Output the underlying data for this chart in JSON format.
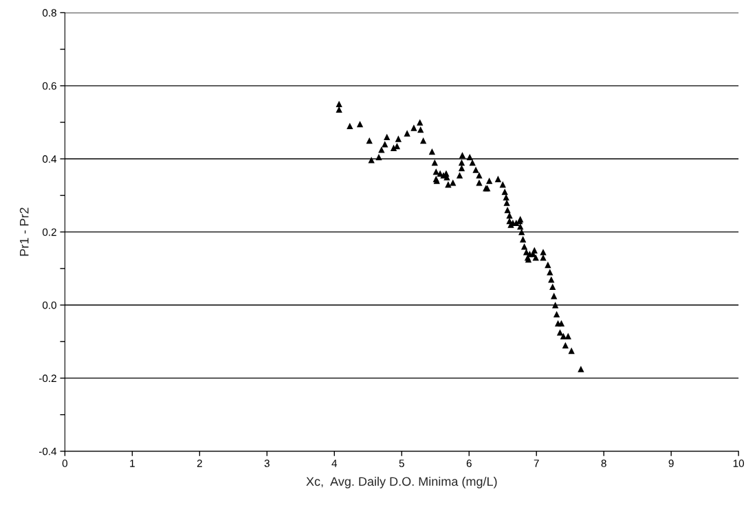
{
  "chart_data": {
    "type": "scatter",
    "xlabel": "Xc,  Avg. Daily D.O. Minima (mg/L)",
    "ylabel": "Pr1 - Pr2",
    "xlim": [
      0,
      10
    ],
    "xticks": [
      0,
      1,
      2,
      3,
      4,
      5,
      6,
      7,
      8,
      9,
      10
    ],
    "ylim": [
      -0.4,
      0.8
    ],
    "yticks": [
      {
        "value": -0.4,
        "label": "-0.4"
      },
      {
        "value": -0.3,
        "label": null
      },
      {
        "value": -0.2,
        "label": "-0.2"
      },
      {
        "value": -0.1,
        "label": null
      },
      {
        "value": 0,
        "label": "0.0"
      },
      {
        "value": 0.1,
        "label": null
      },
      {
        "value": 0.2,
        "label": "0.2"
      },
      {
        "value": 0.3,
        "label": null
      },
      {
        "value": 0.4,
        "label": "0.4"
      },
      {
        "value": 0.5,
        "label": null
      },
      {
        "value": 0.6,
        "label": "0.6"
      },
      {
        "value": 0.7,
        "label": null
      },
      {
        "value": 0.8,
        "label": "0.8"
      }
    ],
    "grid": "y",
    "legend": false,
    "marker": "triangle",
    "series": [
      {
        "color": "#000000",
        "x": [
          4.07,
          4.07,
          4.23,
          4.38,
          4.52,
          4.55,
          4.66,
          4.7,
          4.75,
          4.78,
          4.88,
          4.93,
          4.95,
          5.08,
          5.18,
          5.27,
          5.28,
          5.32,
          5.45,
          5.49,
          5.51,
          5.51,
          5.52,
          5.57,
          5.62,
          5.66,
          5.67,
          5.69,
          5.76,
          5.86,
          5.89,
          5.89,
          5.9,
          6.01,
          6.05,
          6.1,
          6.15,
          6.15,
          6.25,
          6.27,
          6.3,
          6.43,
          6.5,
          6.53,
          6.55,
          6.56,
          6.57,
          6.6,
          6.6,
          6.62,
          6.65,
          6.7,
          6.75,
          6.76,
          6.76,
          6.78,
          6.8,
          6.82,
          6.85,
          6.87,
          6.88,
          6.9,
          6.95,
          6.97,
          6.99,
          7.1,
          7.1,
          7.17,
          7.2,
          7.22,
          7.24,
          7.26,
          7.28,
          7.3,
          7.32,
          7.35,
          7.37,
          7.4,
          7.43,
          7.47,
          7.52,
          7.66
        ],
        "values": [
          0.55,
          0.535,
          0.49,
          0.495,
          0.45,
          0.397,
          0.405,
          0.425,
          0.44,
          0.46,
          0.43,
          0.435,
          0.455,
          0.47,
          0.485,
          0.5,
          0.48,
          0.45,
          0.42,
          0.39,
          0.365,
          0.345,
          0.34,
          0.36,
          0.355,
          0.36,
          0.35,
          0.33,
          0.335,
          0.355,
          0.375,
          0.39,
          0.41,
          0.405,
          0.39,
          0.37,
          0.355,
          0.335,
          0.32,
          0.32,
          0.34,
          0.345,
          0.33,
          0.31,
          0.295,
          0.28,
          0.26,
          0.245,
          0.23,
          0.22,
          0.225,
          0.225,
          0.23,
          0.235,
          0.215,
          0.2,
          0.18,
          0.16,
          0.145,
          0.13,
          0.125,
          0.14,
          0.14,
          0.15,
          0.13,
          0.145,
          0.13,
          0.11,
          0.09,
          0.07,
          0.05,
          0.025,
          0.0,
          -0.025,
          -0.05,
          -0.075,
          -0.05,
          -0.085,
          -0.11,
          -0.085,
          -0.125,
          -0.175
        ]
      }
    ]
  }
}
